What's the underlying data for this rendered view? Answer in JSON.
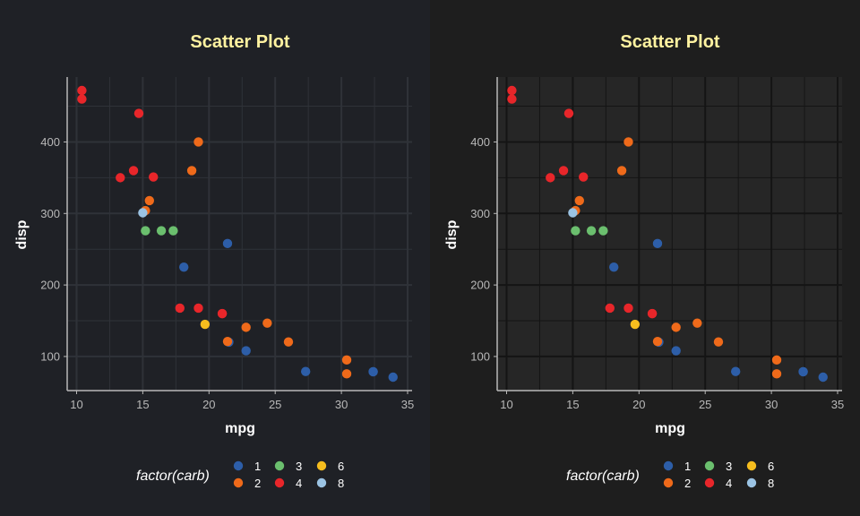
{
  "chart_data": [
    {
      "panel": "left",
      "type": "scatter",
      "title": "Scatter Plot",
      "xlabel": "mpg",
      "ylabel": "disp",
      "xlim": [
        10,
        35
      ],
      "ylim": [
        71.1,
        472
      ],
      "xticks": [
        10,
        15,
        20,
        25,
        30,
        35
      ],
      "yticks": [
        100,
        200,
        300,
        400
      ],
      "grid": true,
      "legend_position": "bottom",
      "legend_title": "factor(carb)",
      "colors": {
        "background": "#1f2126",
        "panel": "#1f2126",
        "grid": "#2f3238",
        "axis": "#b8b8b8",
        "title": "#fff2a0"
      },
      "series": [
        {
          "name": "1",
          "color": "#2d5ea8",
          "points": [
            [
              22.8,
              108
            ],
            [
              21.4,
              258
            ],
            [
              18.1,
              225
            ],
            [
              32.4,
              78.7
            ],
            [
              33.9,
              71.1
            ],
            [
              21.5,
              120.1
            ],
            [
              27.3,
              79
            ],
            [
              32.4,
              78.7
            ]
          ]
        },
        {
          "name": "2",
          "color": "#ef6a1a",
          "points": [
            [
              18.7,
              360
            ],
            [
              24.4,
              146.7
            ],
            [
              22.8,
              140.8
            ],
            [
              19.2,
              400
            ],
            [
              30.4,
              75.7
            ],
            [
              15.5,
              318
            ],
            [
              15.2,
              304
            ],
            [
              26,
              120.3
            ],
            [
              30.4,
              95.1
            ],
            [
              21.4,
              121
            ]
          ]
        },
        {
          "name": "3",
          "color": "#6bbf6e",
          "points": [
            [
              16.4,
              275.8
            ],
            [
              17.3,
              275.8
            ],
            [
              15.2,
              275.8
            ]
          ]
        },
        {
          "name": "4",
          "color": "#e8262a",
          "points": [
            [
              21,
              160
            ],
            [
              21,
              160
            ],
            [
              14.3,
              360
            ],
            [
              19.2,
              167.6
            ],
            [
              17.8,
              167.6
            ],
            [
              10.4,
              472
            ],
            [
              10.4,
              460
            ],
            [
              14.7,
              440
            ],
            [
              13.3,
              350
            ],
            [
              15.8,
              351
            ]
          ]
        },
        {
          "name": "6",
          "color": "#f6bd1e",
          "points": [
            [
              19.7,
              145
            ]
          ]
        },
        {
          "name": "8",
          "color": "#9bc3e3",
          "points": [
            [
              15,
              301
            ]
          ]
        }
      ]
    },
    {
      "panel": "right",
      "type": "scatter",
      "title": "Scatter Plot",
      "xlabel": "mpg",
      "ylabel": "disp",
      "xlim": [
        10,
        35
      ],
      "ylim": [
        71.1,
        472
      ],
      "xticks": [
        10,
        15,
        20,
        25,
        30,
        35
      ],
      "yticks": [
        100,
        200,
        300,
        400
      ],
      "grid": true,
      "legend_position": "bottom",
      "legend_title": "factor(carb)",
      "colors": {
        "background": "#1e1e1e",
        "panel": "#262626",
        "grid": "#141414",
        "axis": "#b8b8b8",
        "title": "#fff2a0"
      },
      "series": [
        {
          "name": "1",
          "color": "#2d5ea8",
          "points": [
            [
              22.8,
              108
            ],
            [
              21.4,
              258
            ],
            [
              18.1,
              225
            ],
            [
              32.4,
              78.7
            ],
            [
              33.9,
              71.1
            ],
            [
              21.5,
              120.1
            ],
            [
              27.3,
              79
            ],
            [
              32.4,
              78.7
            ]
          ]
        },
        {
          "name": "2",
          "color": "#ef6a1a",
          "points": [
            [
              18.7,
              360
            ],
            [
              24.4,
              146.7
            ],
            [
              22.8,
              140.8
            ],
            [
              19.2,
              400
            ],
            [
              30.4,
              75.7
            ],
            [
              15.5,
              318
            ],
            [
              15.2,
              304
            ],
            [
              26,
              120.3
            ],
            [
              30.4,
              95.1
            ],
            [
              21.4,
              121
            ]
          ]
        },
        {
          "name": "3",
          "color": "#6bbf6e",
          "points": [
            [
              16.4,
              275.8
            ],
            [
              17.3,
              275.8
            ],
            [
              15.2,
              275.8
            ]
          ]
        },
        {
          "name": "4",
          "color": "#e8262a",
          "points": [
            [
              21,
              160
            ],
            [
              21,
              160
            ],
            [
              14.3,
              360
            ],
            [
              19.2,
              167.6
            ],
            [
              17.8,
              167.6
            ],
            [
              10.4,
              472
            ],
            [
              10.4,
              460
            ],
            [
              14.7,
              440
            ],
            [
              13.3,
              350
            ],
            [
              15.8,
              351
            ]
          ]
        },
        {
          "name": "6",
          "color": "#f6bd1e",
          "points": [
            [
              19.7,
              145
            ]
          ]
        },
        {
          "name": "8",
          "color": "#9bc3e3",
          "points": [
            [
              15,
              301
            ]
          ]
        }
      ]
    }
  ]
}
